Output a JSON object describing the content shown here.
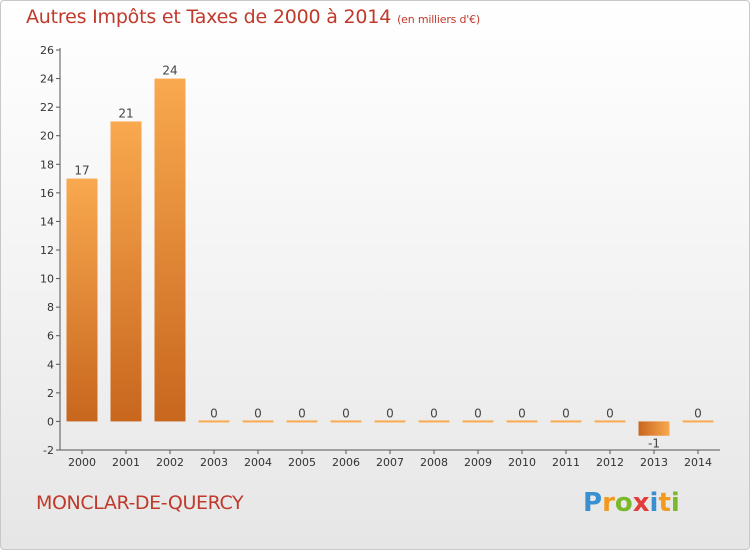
{
  "header": {
    "title": "Autres Impôts et Taxes de 2000 à 2014",
    "unit": "(en milliers d'€)"
  },
  "footer": {
    "town": "MONCLAR-DE-QUERCY",
    "logo": {
      "letters": [
        "P",
        "r",
        "o",
        "x",
        "i",
        "t",
        "i"
      ],
      "colors": [
        "#3a8fd1",
        "#f29a1d",
        "#7ab929",
        "#e23b3b",
        "#3a8fd1",
        "#f29a1d",
        "#7ab929"
      ]
    }
  },
  "colors": {
    "title": "#c0392b",
    "bar_light": "#f9a94f",
    "bar_dark": "#c8661e",
    "axis": "#555555"
  },
  "chart_data": {
    "type": "bar",
    "categories": [
      "2000",
      "2001",
      "2002",
      "2003",
      "2004",
      "2005",
      "2006",
      "2007",
      "2008",
      "2009",
      "2010",
      "2011",
      "2012",
      "2013",
      "2014"
    ],
    "values": [
      17,
      21,
      24,
      0,
      0,
      0,
      0,
      0,
      0,
      0,
      0,
      0,
      0,
      -1,
      0
    ],
    "data_labels": [
      "17",
      "21",
      "24",
      "0",
      "0",
      "0",
      "0",
      "0",
      "0",
      "0",
      "0",
      "0",
      "0",
      "-1",
      "0"
    ],
    "ylim": [
      -2,
      26
    ],
    "yticks": [
      -2,
      0,
      2,
      4,
      6,
      8,
      10,
      12,
      14,
      16,
      18,
      20,
      22,
      24,
      26
    ],
    "grid": false,
    "legend": "none"
  }
}
